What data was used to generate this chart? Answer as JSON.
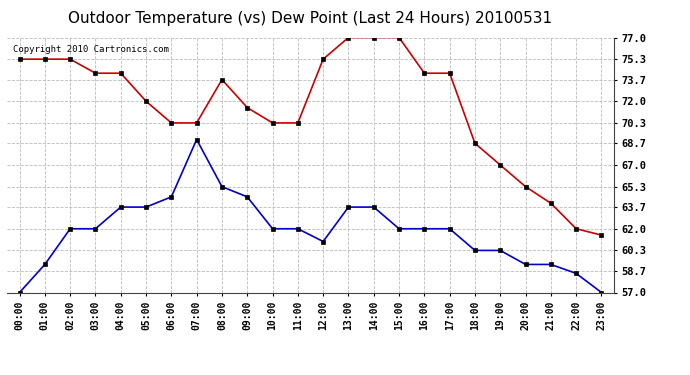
{
  "title": "Outdoor Temperature (vs) Dew Point (Last 24 Hours) 20100531",
  "copyright": "Copyright 2010 Cartronics.com",
  "hours": [
    "00:00",
    "01:00",
    "02:00",
    "03:00",
    "04:00",
    "05:00",
    "06:00",
    "07:00",
    "08:00",
    "09:00",
    "10:00",
    "11:00",
    "12:00",
    "13:00",
    "14:00",
    "15:00",
    "16:00",
    "17:00",
    "18:00",
    "19:00",
    "20:00",
    "21:00",
    "22:00",
    "23:00"
  ],
  "temp": [
    75.3,
    75.3,
    75.3,
    74.2,
    74.2,
    72.0,
    70.3,
    70.3,
    73.7,
    71.5,
    70.3,
    70.3,
    75.3,
    77.0,
    77.0,
    77.0,
    74.2,
    74.2,
    68.7,
    67.0,
    65.3,
    64.0,
    62.0,
    61.5
  ],
  "dew": [
    57.0,
    59.2,
    62.0,
    62.0,
    63.7,
    63.7,
    64.5,
    69.0,
    65.3,
    64.5,
    62.0,
    62.0,
    61.0,
    63.7,
    63.7,
    62.0,
    62.0,
    62.0,
    60.3,
    60.3,
    59.2,
    59.2,
    58.5,
    57.0
  ],
  "temp_color": "#cc0000",
  "dew_color": "#0000cc",
  "ylim_min": 57.0,
  "ylim_max": 77.0,
  "yticks": [
    57.0,
    58.7,
    60.3,
    62.0,
    63.7,
    65.3,
    67.0,
    68.7,
    70.3,
    72.0,
    73.7,
    75.3,
    77.0
  ],
  "bg_color": "#ffffff",
  "plot_bg": "#ffffff",
  "grid_color": "#bbbbbb",
  "title_fontsize": 11,
  "copyright_fontsize": 6.5
}
